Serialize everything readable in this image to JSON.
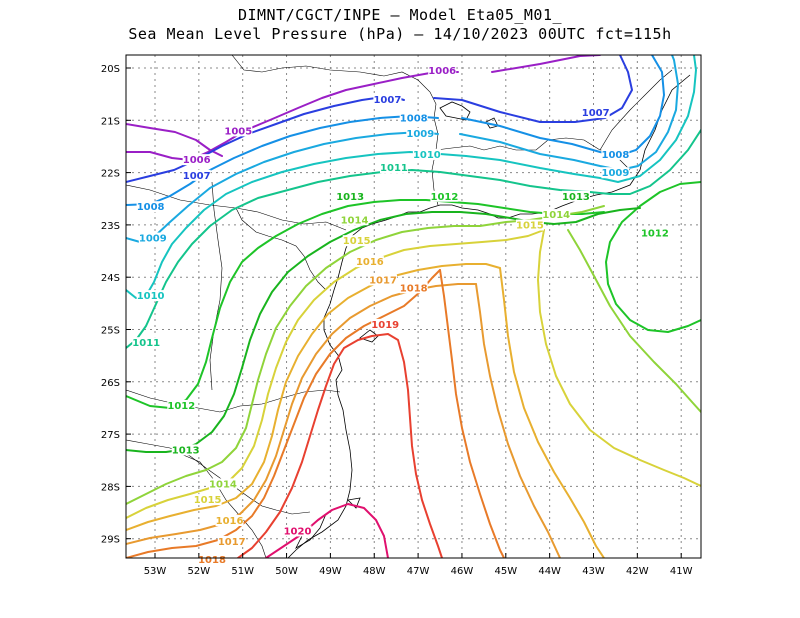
{
  "header": {
    "line1": "DIMNT/CGCT/INPE –  Model Eta05_M01_",
    "line2": "Sea Mean Level Pressure (hPa) – 14/10/2023 00UTC fct=115h"
  },
  "axes": {
    "lon_labels": [
      "53W",
      "52W",
      "51W",
      "50W",
      "49W",
      "48W",
      "47W",
      "46W",
      "45W",
      "44W",
      "43W",
      "42W",
      "41W"
    ],
    "lat_labels": [
      "20S",
      "21S",
      "22S",
      "23S",
      "24S",
      "25S",
      "26S",
      "27S",
      "28S",
      "29S"
    ]
  },
  "contours": [
    {
      "id": "c1005",
      "value": "1005",
      "color": "#9a1fc6",
      "label_lon": -51.1,
      "label_lat": -21.25
    },
    {
      "id": "c1006",
      "value": "1006",
      "color": "#9a1fc6",
      "label_lon": -52.05,
      "label_lat": -21.8,
      "label2_lon": -46.45,
      "label2_lat": -20.1
    },
    {
      "id": "c1007",
      "value": "1007",
      "color": "#2a3ee0",
      "label_lon": -52.05,
      "label_lat": -22.1,
      "label2_lon": -47.7,
      "label2_lat": -20.65,
      "label3_lon": -42.95,
      "label3_lat": -20.9
    },
    {
      "id": "c1008",
      "value": "1008",
      "color": "#1590e6",
      "label_lon": -53.1,
      "label_lat": -22.7,
      "label2_lon": -47.1,
      "label2_lat": -21.0,
      "label3_lon": -42.5,
      "label3_lat": -21.7
    },
    {
      "id": "c1009",
      "value": "1009",
      "color": "#1aa9e0",
      "label_lon": -53.05,
      "label_lat": -23.3,
      "label2_lon": -46.95,
      "label2_lat": -21.3,
      "label3_lon": -42.5,
      "label3_lat": -22.05
    },
    {
      "id": "c1010",
      "value": "1010",
      "color": "#16c4c0",
      "label_lon": -53.1,
      "label_lat": -24.4,
      "label2_lon": -46.8,
      "label2_lat": -21.7
    },
    {
      "id": "c1011",
      "value": "1011",
      "color": "#14c48c",
      "label_lon": -53.2,
      "label_lat": -25.3,
      "label2_lon": -47.55,
      "label2_lat": -21.95
    },
    {
      "id": "c1012",
      "value": "1012",
      "color": "#1ec428",
      "label_lon": -52.4,
      "label_lat": -26.5,
      "label2_lon": -46.4,
      "label2_lat": -22.5,
      "label3_lon": -41.6,
      "label3_lat": -23.2
    },
    {
      "id": "c1013",
      "value": "1013",
      "color": "#19b41e",
      "label_lon": -52.3,
      "label_lat": -27.35,
      "label2_lon": -48.55,
      "label2_lat": -22.5,
      "label3_lon": -43.4,
      "label3_lat": -22.5
    },
    {
      "id": "c1014",
      "value": "1014",
      "color": "#8fd43a",
      "label_lon": -51.45,
      "label_lat": -28.0,
      "label2_lon": -48.45,
      "label2_lat": -22.95,
      "label3_lon": -43.85,
      "label3_lat": -22.85
    },
    {
      "id": "c1015",
      "value": "1015",
      "color": "#d8d23a",
      "label_lon": -51.8,
      "label_lat": -28.3,
      "label2_lon": -48.4,
      "label2_lat": -23.35,
      "label3_lon": -44.45,
      "label3_lat": -23.05
    },
    {
      "id": "c1016",
      "value": "1016",
      "color": "#e8b030",
      "label_lon": -51.3,
      "label_lat": -28.7,
      "label2_lon": -48.1,
      "label2_lat": -23.75
    },
    {
      "id": "c1017",
      "value": "1017",
      "color": "#e89a30",
      "label_lon": -51.25,
      "label_lat": -29.1,
      "label2_lon": -47.8,
      "label2_lat": -24.1
    },
    {
      "id": "c1018",
      "value": "1018",
      "color": "#e87a28",
      "label_lon": -51.7,
      "label_lat": -29.45,
      "label2_lon": -47.1,
      "label2_lat": -24.25
    },
    {
      "id": "c1019",
      "value": "1019",
      "color": "#e84030",
      "label_lon": -47.75,
      "label_lat": -24.95
    },
    {
      "id": "c1020",
      "value": "1020",
      "color": "#e0106e",
      "label_lon": -49.75,
      "label_lat": -28.9
    }
  ]
}
